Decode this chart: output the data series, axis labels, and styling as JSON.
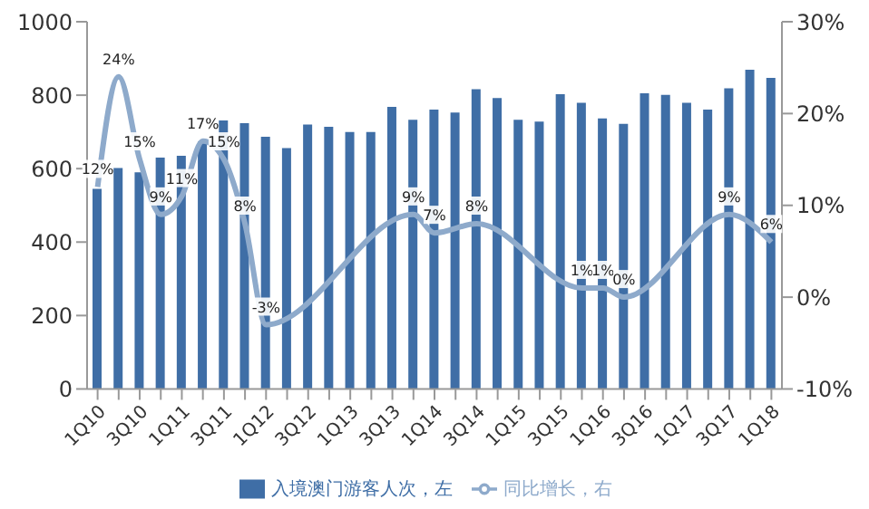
{
  "chart_data": {
    "type": "bar",
    "categories": [
      "1Q10",
      null,
      "3Q10",
      null,
      "1Q11",
      null,
      "3Q11",
      null,
      "1Q12",
      null,
      "3Q12",
      null,
      "1Q13",
      null,
      "3Q13",
      null,
      "1Q14",
      null,
      "3Q14",
      null,
      "1Q15",
      null,
      "3Q15",
      null,
      "1Q16",
      null,
      "3Q16",
      null,
      "1Q17",
      null,
      "3Q17",
      null,
      "1Q18"
    ],
    "series": [
      {
        "name": "入境澳门游客人次，左",
        "color": "#3f6ea6",
        "values": [
          545,
          602,
          590,
          630,
          635,
          674,
          731,
          724,
          687,
          656,
          720,
          714,
          700,
          700,
          768,
          733,
          761,
          753,
          816,
          792,
          733,
          728,
          803,
          779,
          737,
          722,
          805,
          801,
          779,
          761,
          819,
          869,
          847
        ]
      },
      {
        "name": "同比增长，右",
        "type": "line",
        "axis": "y2",
        "color": "#8eaacb",
        "values": [
          12,
          24,
          15,
          9,
          11,
          17,
          15,
          8,
          -3,
          null,
          null,
          null,
          null,
          null,
          null,
          9,
          7,
          null,
          8,
          null,
          null,
          null,
          null,
          1,
          1,
          0,
          null,
          null,
          null,
          null,
          9,
          null,
          6
        ],
        "value_labels": [
          "12%",
          "24%",
          "15%",
          "9%",
          "11%",
          "17%",
          "15%",
          "8%",
          "-3%",
          null,
          null,
          null,
          null,
          null,
          null,
          "9%",
          "7%",
          null,
          "8%",
          null,
          null,
          null,
          null,
          "1%",
          "1%",
          "0%",
          null,
          null,
          null,
          null,
          "9%",
          null,
          "6%"
        ]
      }
    ],
    "ylim": [
      0,
      1000
    ],
    "yticks": [
      0,
      200,
      400,
      600,
      800,
      1000
    ],
    "y2lim": [
      -10,
      30
    ],
    "y2ticks": [
      {
        "value": -10,
        "label": "-10%"
      },
      {
        "value": 0,
        "label": "0%"
      },
      {
        "value": 10,
        "label": "10%"
      },
      {
        "value": 20,
        "label": "20%"
      },
      {
        "value": 30,
        "label": "30%"
      }
    ],
    "grid": false,
    "legend": "bottom"
  }
}
